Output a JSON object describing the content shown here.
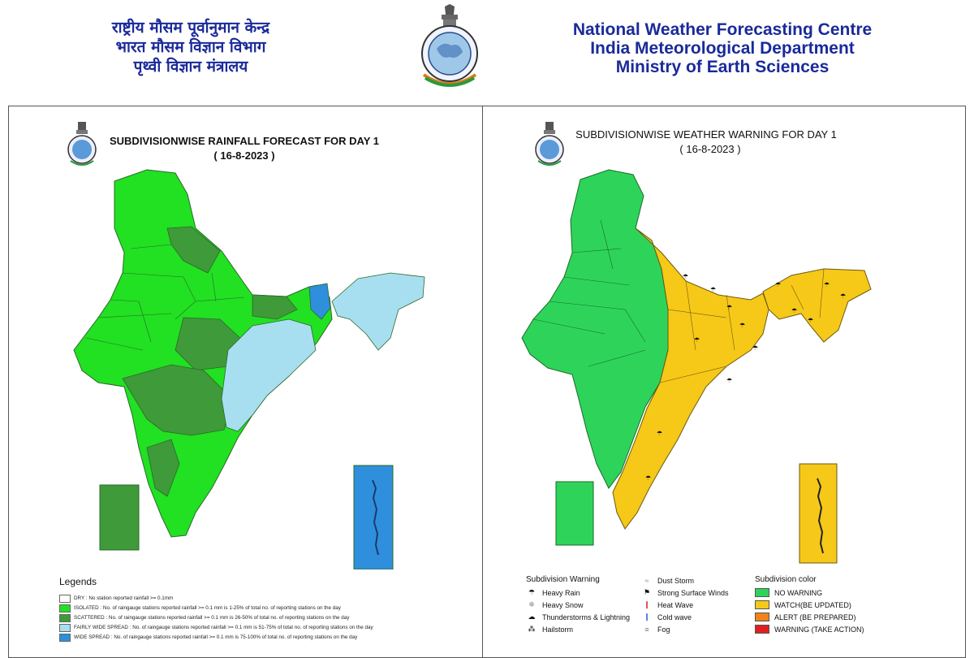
{
  "header": {
    "hindi_lines": [
      "राष्ट्रीय मौसम पूर्वानुमान केन्द्र",
      "भारत मौसम विज्ञान विभाग",
      "पृथ्वी विज्ञान मंत्रालय"
    ],
    "english_lines": [
      "National Weather Forecasting Centre",
      "India Meteorological Department",
      "Ministry of Earth Sciences"
    ]
  },
  "colors": {
    "dry": "#ffffff",
    "isolated": "#22e022",
    "scattered": "#3f9a3a",
    "fairly_wide_spread": "#a8dff0",
    "wide_spread": "#2f8fdc",
    "no_warning": "#2ed45a",
    "watch": "#f6c818",
    "alert": "#f0831a",
    "warning": "#e02020",
    "header_text": "#1a2a9a"
  },
  "rainfall_panel": {
    "title": "SUBDIVISIONWISE RAINFALL  FORECAST FOR DAY 1",
    "date": "( 16-8-2023 )",
    "legends_title": "Legends",
    "legends": [
      {
        "key": "dry",
        "text": "DRY : No station reported rainfall >= 0.1mm"
      },
      {
        "key": "isolated",
        "text": "ISOLATED : No. of raingauge stations reported rainfall >= 0.1 mm is 1-25% of total no. of reporting stations on the day"
      },
      {
        "key": "scattered",
        "text": "SCATTERED : No. of raingauge stations reported rainfall >= 0.1 mm is 26-50% of total no. of reporting stations on the day"
      },
      {
        "key": "fairly_wide_spread",
        "text": "FAIRLY WIDE SPREAD : No. of raingauge stations reported rainfall >= 0.1 mm is 51-75% of total no. of reporting stations on the day"
      },
      {
        "key": "wide_spread",
        "text": "WIDE SPREAD : No. of raingauge stations reported rainfall >= 0.1 mm is 75-100% of total no. of reporting stations on the day"
      }
    ]
  },
  "warning_panel": {
    "title": "SUBDIVISIONWISE WEATHER WARNING FOR DAY 1",
    "date": "( 16-8-2023 )",
    "warning_title": "Subdivision Warning",
    "warnings_col1": [
      {
        "icon": "heavy-rain-icon",
        "label": "Heavy Rain"
      },
      {
        "icon": "heavy-snow-icon",
        "label": "Heavy Snow"
      },
      {
        "icon": "thunderstorm-icon",
        "label": "Thunderstorms & Lightning"
      },
      {
        "icon": "hailstorm-icon",
        "label": "Hailstorm"
      }
    ],
    "warnings_col2": [
      {
        "icon": "dust-storm-icon",
        "label": "Dust Storm"
      },
      {
        "icon": "surface-wind-icon",
        "label": "Strong Surface Winds"
      },
      {
        "icon": "heat-wave-icon",
        "label": "Heat Wave"
      },
      {
        "icon": "cold-wave-icon",
        "label": "Cold wave"
      },
      {
        "icon": "fog-icon",
        "label": "Fog"
      }
    ],
    "color_title": "Subdivision color",
    "color_legend": [
      {
        "key": "no_warning",
        "label": "NO WARNING"
      },
      {
        "key": "watch",
        "label": "WATCH(BE UPDATED)"
      },
      {
        "key": "alert",
        "label": "ALERT (BE PREPARED)"
      },
      {
        "key": "warning",
        "label": "WARNING (TAKE ACTION)"
      }
    ]
  }
}
